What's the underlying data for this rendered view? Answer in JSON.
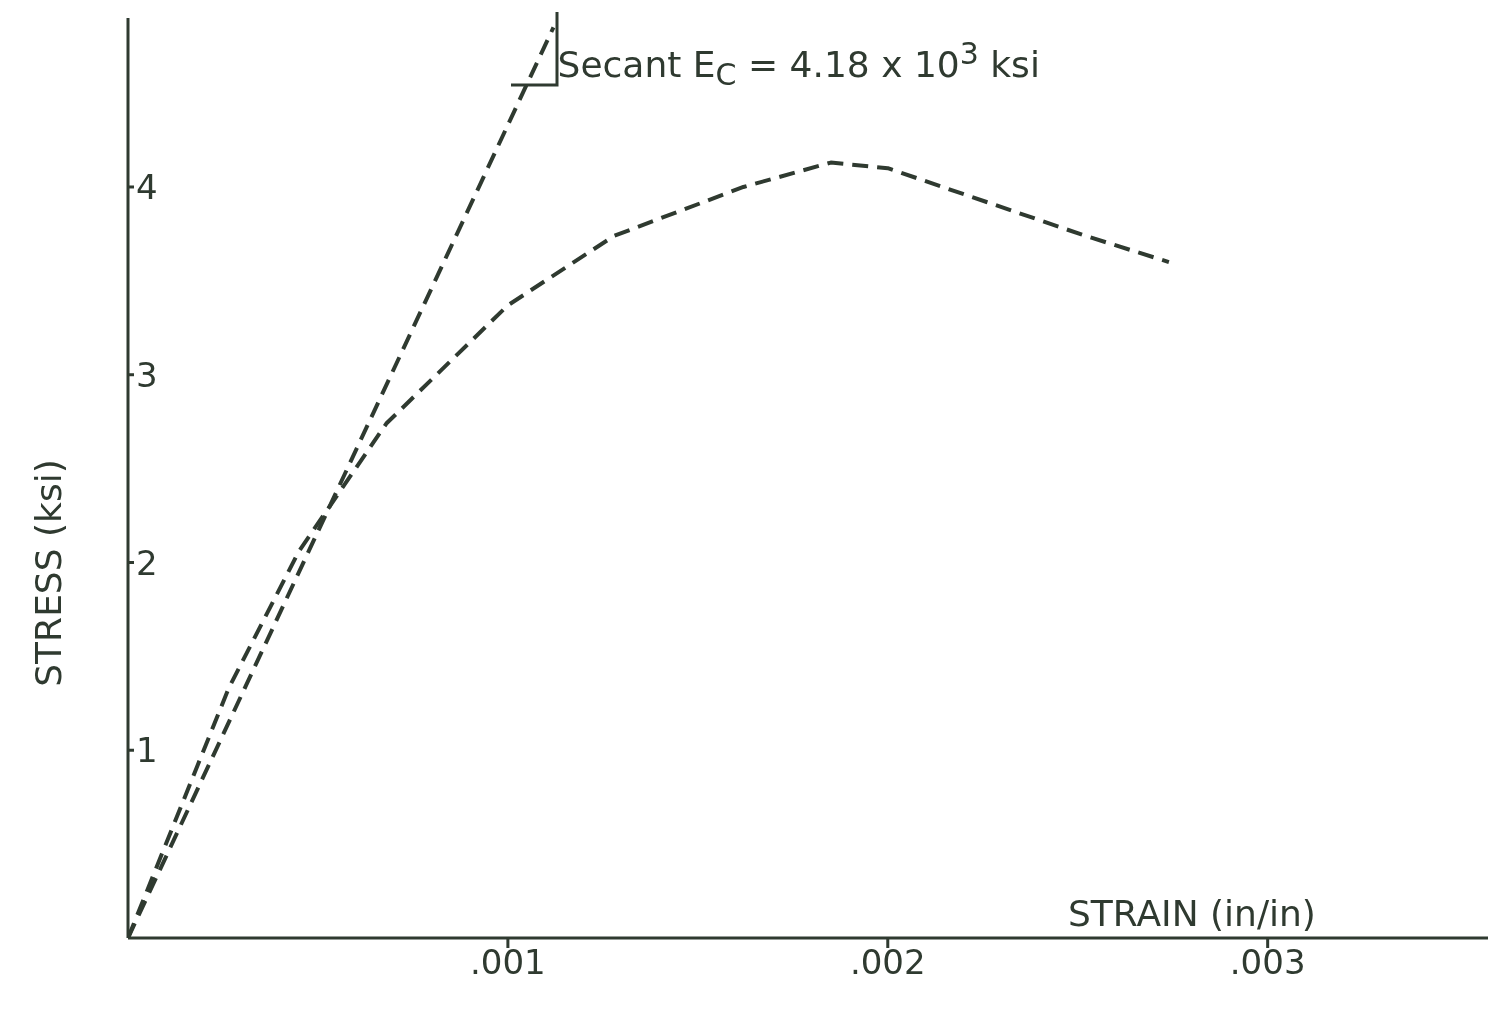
{
  "chart_data": {
    "type": "line",
    "xlabel": "STRAIN (in/in)",
    "ylabel": "STRESS (ksi)",
    "xlim": [
      0,
      0.00358
    ],
    "ylim": [
      0,
      4.9
    ],
    "xticks": [
      {
        "value": 0.001,
        "label": ".001"
      },
      {
        "value": 0.002,
        "label": ".002"
      },
      {
        "value": 0.003,
        "label": ".003"
      }
    ],
    "yticks": [
      1,
      2,
      3,
      4
    ],
    "grid": false,
    "marker": "none",
    "annotations": [
      {
        "text": "Secant  E$_{C}$ = 4.18 x 10$^{3}$ ksi",
        "x": 0.00105,
        "y": 4.55
      }
    ],
    "series": [
      {
        "color": "#2f3a30",
        "line_style": "dashed",
        "x": [
          0,
          0.00112
        ],
        "values": [
          0,
          4.85
        ]
      },
      {
        "color": "#2f3a30",
        "line_style": "dashed",
        "x": [
          0,
          0.000265,
          0.00045,
          0.00068,
          0.001,
          0.00128,
          0.00162,
          0.00185,
          0.002,
          0.00226,
          0.00252,
          0.00274
        ],
        "values": [
          0,
          1.33,
          2.06,
          2.74,
          3.37,
          3.74,
          4.0,
          4.13,
          4.1,
          3.92,
          3.74,
          3.6
        ]
      }
    ]
  }
}
